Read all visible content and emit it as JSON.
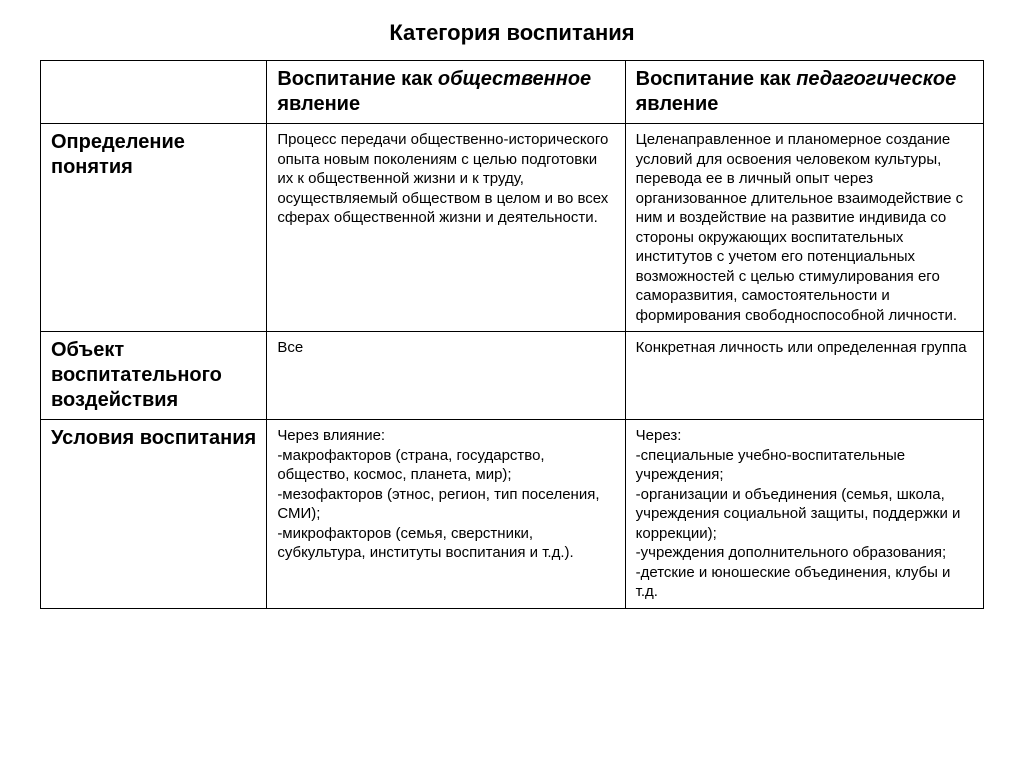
{
  "title": "Категория воспитания",
  "columns": {
    "col1_prefix": "Воспитание как ",
    "col1_italic": "общественное",
    "col1_suffix": " явление",
    "col2_prefix": "Воспитание как ",
    "col2_italic": "педагогическое",
    "col2_suffix": " явление"
  },
  "rows": [
    {
      "label": "Определение понятия",
      "c1": "Процесс передачи общественно-исторического опыта новым поколениям с целью подготовки их к общественной жизни и к труду, осуществляемый обществом в целом и во всех сферах общественной жизни и деятельности.",
      "c2": "Целенаправленное и планомерное создание условий для освоения человеком культуры, перевода ее в личный опыт через организованное длительное взаимодействие с ним  и воздействие  на развитие индивида со стороны окружающих воспитательных институтов с учетом его потенциальных возможностей с целью стимулирования его саморазвития, самостоятельности и формирования свободноспособной личности."
    },
    {
      "label": "Объект воспитательного воздействия",
      "c1": "Все",
      "c2": "Конкретная личность или определенная группа"
    },
    {
      "label": "Условия воспитания",
      "c1": "Через влияние:\n-макрофакторов (страна, государство, общество, космос, планета, мир);\n-мезофакторов (этнос, регион, тип поселения, СМИ);\n-микрофакторов (семья, сверстники, субкультура, институты воспитания и т.д.).",
      "c2": "Через:\n-специальные учебно-воспитательные учреждения;\n-организации и объединения (семья, школа, учреждения социальной защиты, поддержки и коррекции);\n-учреждения дополнительного образования;\n-детские и юношеские объединения, клубы  и т.д."
    }
  ],
  "style": {
    "title_fontsize": 22,
    "header_fontsize": 20,
    "body_fontsize": 15,
    "border_color": "#000000",
    "background_color": "#ffffff",
    "text_color": "#000000",
    "col_widths_pct": [
      24,
      38,
      38
    ]
  }
}
